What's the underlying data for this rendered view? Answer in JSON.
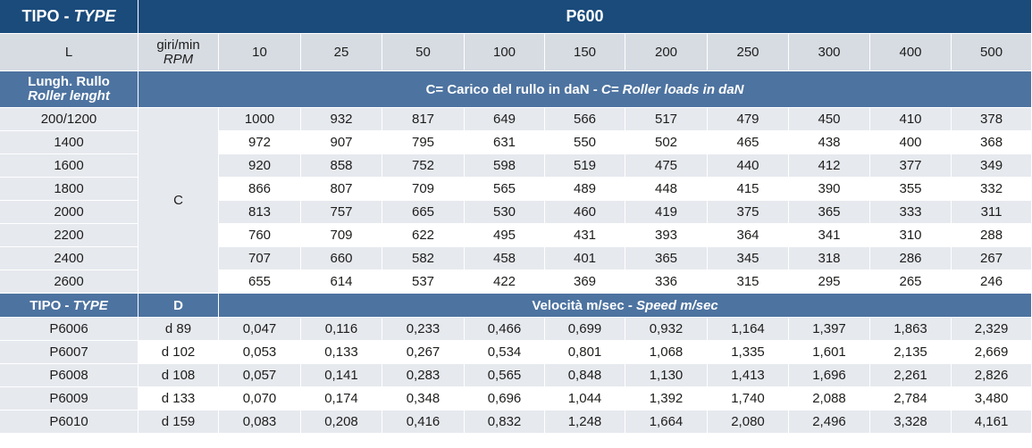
{
  "header": {
    "tipo": "TIPO - ",
    "type": "TYPE",
    "series": "P600"
  },
  "columns": {
    "l_label": "L",
    "rpm_it": "giri/min",
    "rpm_en": "RPM",
    "rpm_values": [
      "10",
      "25",
      "50",
      "100",
      "150",
      "200",
      "250",
      "300",
      "400",
      "500"
    ]
  },
  "loads": {
    "length_it": "Lungh. Rullo",
    "length_en": "Roller lenght",
    "band_it": "C= Carico del rullo in daN - ",
    "band_en": "C= Roller loads in daN",
    "c_label": "C",
    "rows": [
      {
        "length": "200/1200",
        "values": [
          "1000",
          "932",
          "817",
          "649",
          "566",
          "517",
          "479",
          "450",
          "410",
          "378"
        ]
      },
      {
        "length": "1400",
        "values": [
          "972",
          "907",
          "795",
          "631",
          "550",
          "502",
          "465",
          "438",
          "400",
          "368"
        ]
      },
      {
        "length": "1600",
        "values": [
          "920",
          "858",
          "752",
          "598",
          "519",
          "475",
          "440",
          "412",
          "377",
          "349"
        ]
      },
      {
        "length": "1800",
        "values": [
          "866",
          "807",
          "709",
          "565",
          "489",
          "448",
          "415",
          "390",
          "355",
          "332"
        ]
      },
      {
        "length": "2000",
        "values": [
          "813",
          "757",
          "665",
          "530",
          "460",
          "419",
          "375",
          "365",
          "333",
          "311"
        ]
      },
      {
        "length": "2200",
        "values": [
          "760",
          "709",
          "622",
          "495",
          "431",
          "393",
          "364",
          "341",
          "310",
          "288"
        ]
      },
      {
        "length": "2400",
        "values": [
          "707",
          "660",
          "582",
          "458",
          "401",
          "365",
          "345",
          "318",
          "286",
          "267"
        ]
      },
      {
        "length": "2600",
        "values": [
          "655",
          "614",
          "537",
          "422",
          "369",
          "336",
          "315",
          "295",
          "265",
          "246"
        ]
      }
    ]
  },
  "speed": {
    "tipo": "TIPO - ",
    "type": "TYPE",
    "d_label": "D",
    "band_it": "Velocità m/sec - ",
    "band_en": "Speed m/sec",
    "rows": [
      {
        "type": "P6006",
        "d": "d 89",
        "values": [
          "0,047",
          "0,116",
          "0,233",
          "0,466",
          "0,699",
          "0,932",
          "1,164",
          "1,397",
          "1,863",
          "2,329"
        ]
      },
      {
        "type": "P6007",
        "d": "d 102",
        "values": [
          "0,053",
          "0,133",
          "0,267",
          "0,534",
          "0,801",
          "1,068",
          "1,335",
          "1,601",
          "2,135",
          "2,669"
        ]
      },
      {
        "type": "P6008",
        "d": "d 108",
        "values": [
          "0,057",
          "0,141",
          "0,283",
          "0,565",
          "0,848",
          "1,130",
          "1,413",
          "1,696",
          "2,261",
          "2,826"
        ]
      },
      {
        "type": "P6009",
        "d": "d 133",
        "values": [
          "0,070",
          "0,174",
          "0,348",
          "0,696",
          "1,044",
          "1,392",
          "1,740",
          "2,088",
          "2,784",
          "3,480"
        ]
      },
      {
        "type": "P6010",
        "d": "d 159",
        "values": [
          "0,083",
          "0,208",
          "0,416",
          "0,832",
          "1,248",
          "1,664",
          "2,080",
          "2,496",
          "3,328",
          "4,161"
        ]
      }
    ]
  }
}
